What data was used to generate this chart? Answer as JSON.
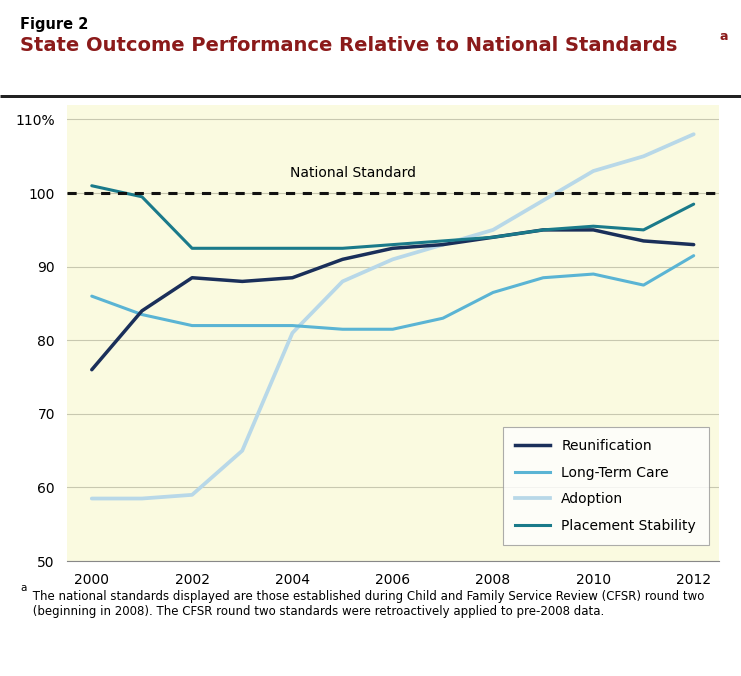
{
  "title_label": "Figure 2",
  "title_main": "State Outcome Performance Relative to National Standards",
  "title_superscript": "a",
  "header_bg_color": "#FFFFFF",
  "plot_bg_color": "#FAFAE0",
  "fig_bg_color": "#FAFAE0",
  "years": [
    2000,
    2001,
    2002,
    2003,
    2004,
    2005,
    2006,
    2007,
    2008,
    2009,
    2010,
    2011,
    2012
  ],
  "reunification": [
    76,
    84,
    88.5,
    88,
    88.5,
    91,
    92.5,
    93,
    94,
    95,
    95,
    93.5,
    93
  ],
  "long_term_care": [
    86,
    83.5,
    82,
    82,
    82,
    81.5,
    81.5,
    83,
    86.5,
    88.5,
    89,
    87.5,
    91.5
  ],
  "adoption": [
    58.5,
    58.5,
    59,
    65,
    81,
    88,
    91,
    93,
    95,
    99,
    103,
    105,
    108
  ],
  "placement_stability": [
    101,
    99.5,
    92.5,
    92.5,
    92.5,
    92.5,
    93,
    93.5,
    94,
    95,
    95.5,
    95,
    98.5
  ],
  "reunification_color": "#1a2f5a",
  "long_term_care_color": "#5ab4d4",
  "adoption_color": "#b8d8e8",
  "placement_stability_color": "#1a7a8a",
  "national_standard_color": "#111111",
  "ylim": [
    50,
    112
  ],
  "xlim": [
    1999.5,
    2012.5
  ],
  "yticks": [
    50,
    60,
    70,
    80,
    90,
    100,
    110
  ],
  "ytick_labels": [
    "50",
    "60",
    "70",
    "80",
    "90",
    "100",
    "110%"
  ],
  "xticks": [
    2000,
    2002,
    2004,
    2006,
    2008,
    2010,
    2012
  ],
  "national_standard_y": 100,
  "national_standard_label": "National Standard",
  "footnote_superscript": "a",
  "footnote_text": " The national standards displayed are those established during Child and Family Service Review (CFSR) round two\n (beginning in 2008). The CFSR round two standards were retroactively applied to pre-2008 data.",
  "legend_labels": [
    "Reunification",
    "Long-Term Care",
    "Adoption",
    "Placement Stability"
  ],
  "grid_color": "#c8c8b0",
  "title_color": "#8b1a1a",
  "line_width": 2.2,
  "border_color": "#222222"
}
